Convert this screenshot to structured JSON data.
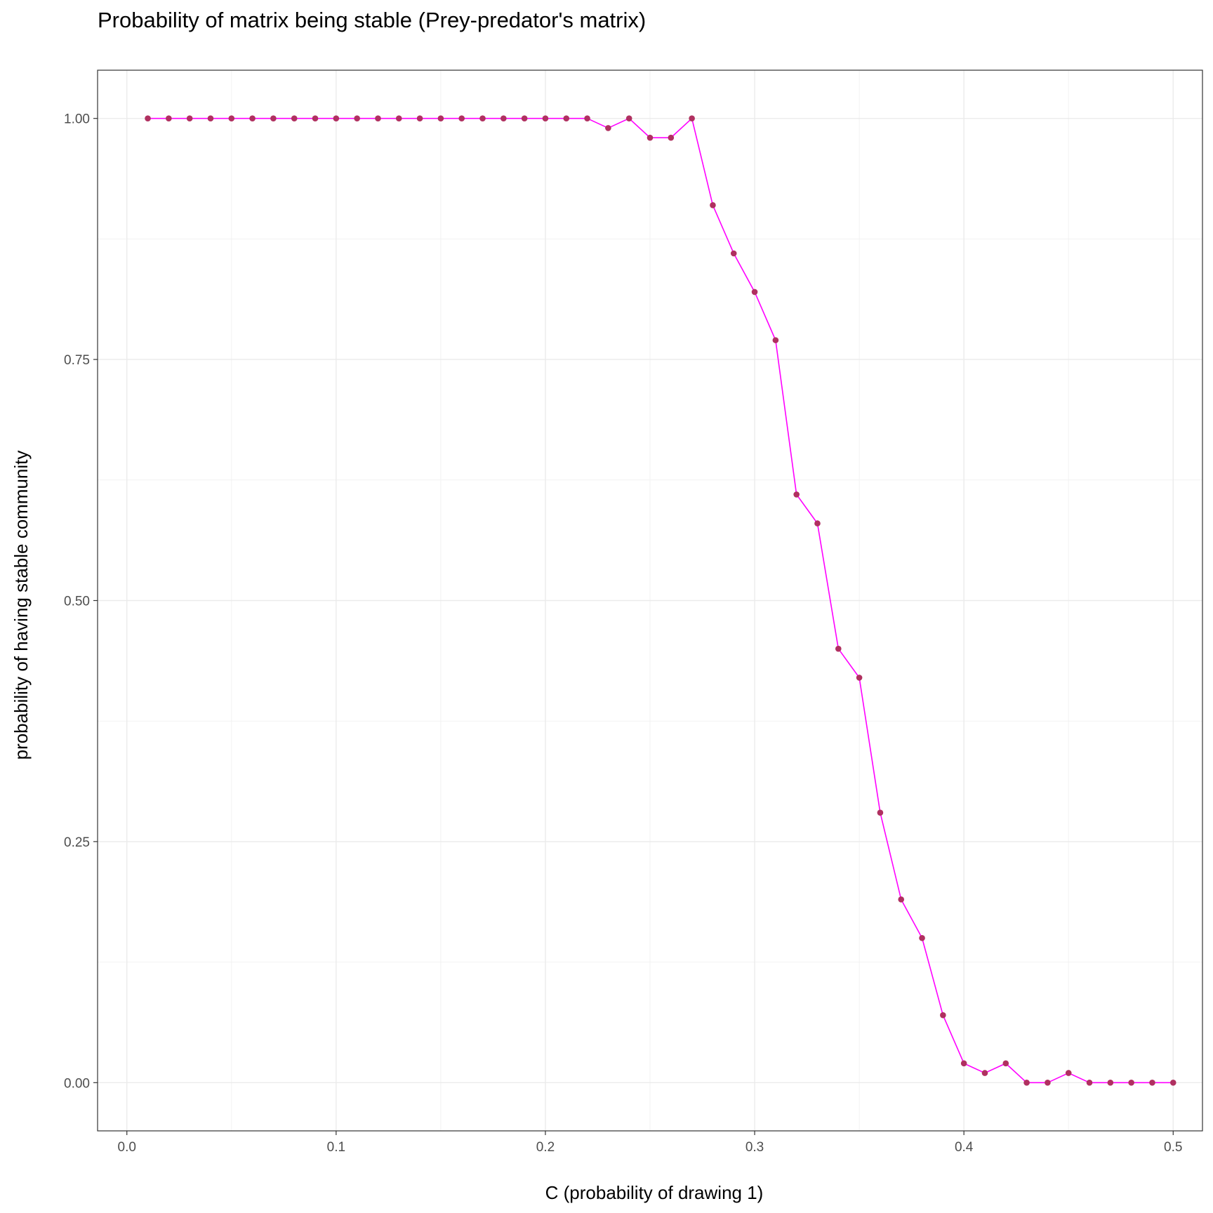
{
  "chart_data": {
    "type": "line",
    "title": "Probability of matrix being stable (Prey-predator's matrix)",
    "xlabel": "C (probability of drawing 1)",
    "ylabel": "probability of having stable community",
    "xlim": [
      -0.014,
      0.514
    ],
    "ylim": [
      -0.05,
      1.05
    ],
    "x_ticks": [
      "0.0",
      "0.1",
      "0.2",
      "0.3",
      "0.4",
      "0.5"
    ],
    "y_ticks": [
      "0.00",
      "0.25",
      "0.50",
      "0.75",
      "1.00"
    ],
    "grid": true,
    "line_color": "#ff00ff",
    "point_color": "#b03060",
    "series": [
      {
        "x": [
          0.01,
          0.02,
          0.03,
          0.04,
          0.05,
          0.06,
          0.07,
          0.08,
          0.09,
          0.1,
          0.11,
          0.12,
          0.13,
          0.14,
          0.15,
          0.16,
          0.17,
          0.18,
          0.19,
          0.2,
          0.21,
          0.22,
          0.23,
          0.24,
          0.25,
          0.26,
          0.27,
          0.28,
          0.29,
          0.3,
          0.31,
          0.32,
          0.33,
          0.34,
          0.35,
          0.36,
          0.37,
          0.38,
          0.39,
          0.4,
          0.41,
          0.42,
          0.43,
          0.44,
          0.45,
          0.46,
          0.47,
          0.48,
          0.49,
          0.5
        ],
        "y": [
          1.0,
          1.0,
          1.0,
          1.0,
          1.0,
          1.0,
          1.0,
          1.0,
          1.0,
          1.0,
          1.0,
          1.0,
          1.0,
          1.0,
          1.0,
          1.0,
          1.0,
          1.0,
          1.0,
          1.0,
          1.0,
          1.0,
          0.99,
          1.0,
          0.98,
          0.98,
          1.0,
          0.91,
          0.86,
          0.82,
          0.77,
          0.61,
          0.58,
          0.45,
          0.42,
          0.28,
          0.19,
          0.15,
          0.07,
          0.02,
          0.01,
          0.02,
          0.0,
          0.0,
          0.01,
          0.0,
          0.0,
          0.0,
          0.0,
          0.0
        ]
      }
    ]
  }
}
